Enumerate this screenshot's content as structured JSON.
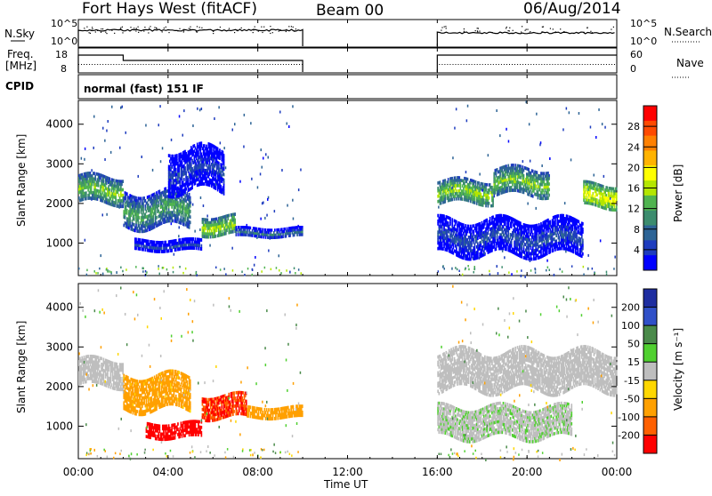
{
  "header": {
    "station": "Fort Hays West (fitACF)",
    "beam": "Beam 00",
    "date": "06/Aug/2014"
  },
  "strip_labels": {
    "nsky": "N.Sky",
    "nsearch": "N.Search",
    "freq_line1": "Freq.",
    "freq_line2": "[MHz]",
    "nave": "Nave",
    "cpid": "CPID",
    "cpid_value": "normal (fast) 151 IF"
  },
  "noise_ticks": {
    "left": [
      "10^5",
      "10^0"
    ],
    "right": [
      "10^5",
      "10^0"
    ]
  },
  "freq_ticks": {
    "left": [
      "18",
      "8"
    ],
    "right": [
      "60",
      "0"
    ]
  },
  "x_axis": {
    "label": "Time UT",
    "ticks": [
      "00:00",
      "04:00",
      "08:00",
      "12:00",
      "16:00",
      "20:00",
      "00:00"
    ]
  },
  "panels": [
    {
      "ylabel": "Slant Range [km]",
      "yticks": [
        "1000",
        "2000",
        "3000",
        "4000"
      ],
      "colorbar_title": "Power [dB]",
      "colorbar_ticks": [
        "28",
        "24",
        "20",
        "16",
        "12",
        "8",
        "4"
      ],
      "colorbar_colors": [
        "#ff0000",
        "#ff4a00",
        "#ff8000",
        "#ffb300",
        "#ffff00",
        "#b4e600",
        "#50b450",
        "#3c8c6e",
        "#2d6496",
        "#1e3cbe",
        "#0000ff"
      ]
    },
    {
      "ylabel": "Slant Range [km]",
      "yticks": [
        "1000",
        "2000",
        "3000",
        "4000"
      ],
      "colorbar_title": "Velocity [m s⁻¹]",
      "colorbar_ticks": [
        "200",
        "100",
        "50",
        "15",
        "-15",
        "-50",
        "-100",
        "-200"
      ],
      "colorbar_colors": [
        "#1e2da0",
        "#3050c8",
        "#4a8a4a",
        "#50d030",
        "#bebebe",
        "#ffd700",
        "#ffa000",
        "#ff6000",
        "#ff0000"
      ]
    }
  ],
  "chart_data": [
    {
      "type": "heatmap",
      "title": "Power",
      "x_range_hours": [
        0,
        24
      ],
      "y_range_km": [
        180,
        4600
      ],
      "colorbar_range_db": [
        0,
        30
      ],
      "data_gap_hours": [
        10,
        16
      ],
      "echo_bands": [
        {
          "t0": 0.0,
          "t1": 2.0,
          "r0": 2000,
          "r1": 2700,
          "power_db": 14
        },
        {
          "t0": 2.0,
          "t1": 5.0,
          "r0": 1400,
          "r1": 2300,
          "power_db": 12
        },
        {
          "t0": 2.5,
          "t1": 5.5,
          "r0": 800,
          "r1": 1100,
          "power_db": 5
        },
        {
          "t0": 5.5,
          "t1": 7.0,
          "r0": 1200,
          "r1": 1700,
          "power_db": 16
        },
        {
          "t0": 7.0,
          "t1": 10.0,
          "r0": 1150,
          "r1": 1400,
          "power_db": 8
        },
        {
          "t0": 4.0,
          "t1": 6.5,
          "r0": 2300,
          "r1": 3400,
          "power_db": 5
        },
        {
          "t0": 16.0,
          "t1": 18.5,
          "r0": 2000,
          "r1": 2600,
          "power_db": 15
        },
        {
          "t0": 18.5,
          "t1": 21.0,
          "r0": 2200,
          "r1": 2900,
          "power_db": 14
        },
        {
          "t0": 22.5,
          "t1": 24.0,
          "r0": 1900,
          "r1": 2500,
          "power_db": 18
        },
        {
          "t0": 16.0,
          "t1": 22.5,
          "r0": 700,
          "r1": 1600,
          "power_db": 6
        }
      ]
    },
    {
      "type": "heatmap",
      "title": "Velocity",
      "x_range_hours": [
        0,
        24
      ],
      "y_range_km": [
        180,
        4600
      ],
      "colorbar_range_ms": [
        -200,
        200
      ],
      "data_gap_hours": [
        10,
        16
      ],
      "echo_bands": [
        {
          "t0": 0.0,
          "t1": 2.0,
          "r0": 2000,
          "r1": 2700,
          "velocity_ms": 0
        },
        {
          "t0": 2.0,
          "t1": 5.0,
          "r0": 1400,
          "r1": 2300,
          "velocity_ms": -40
        },
        {
          "t0": 3.0,
          "t1": 5.5,
          "r0": 700,
          "r1": 1100,
          "velocity_ms": -200
        },
        {
          "t0": 5.5,
          "t1": 7.5,
          "r0": 1200,
          "r1": 1800,
          "velocity_ms": -150
        },
        {
          "t0": 7.5,
          "t1": 10.0,
          "r0": 1200,
          "r1": 1500,
          "velocity_ms": -50
        },
        {
          "t0": 16.0,
          "t1": 24.0,
          "r0": 1900,
          "r1": 2900,
          "velocity_ms": 0
        },
        {
          "t0": 16.0,
          "t1": 22.0,
          "r0": 700,
          "r1": 1500,
          "velocity_ms": 10
        }
      ]
    }
  ]
}
